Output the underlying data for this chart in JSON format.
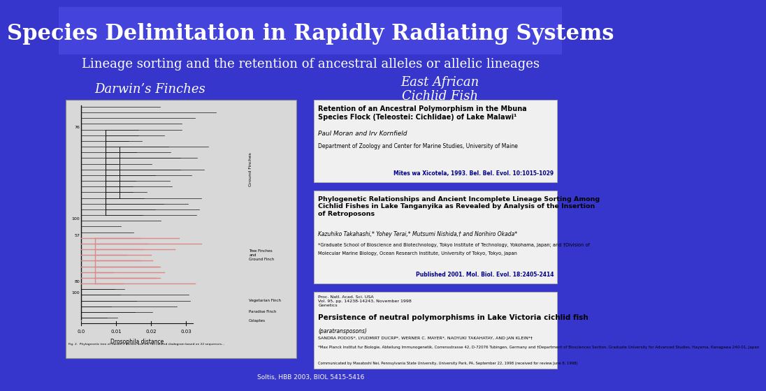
{
  "background_color": "#3636cc",
  "title": "Species Delimitation in Rapidly Radiating Systems",
  "subtitle": "Lineage sorting and the retention of ancestral alleles or allelic lineages",
  "title_color": "#ffffff",
  "subtitle_color": "#ffffff",
  "left_label": "Darwin’s Finches",
  "right_label": "East African\nCichlid Fish",
  "label_color": "#ffffff",
  "paper1_title": "Retention of an Ancestral Polymorphism in the Mbuna\nSpecies Flock (Teleostei: Cichlidae) of Lake Malawi¹",
  "paper1_authors": "Paul Moran and Irv Kornfield",
  "paper1_affil": "Department of Zoology and Center for Marine Studies, University of Maine",
  "paper1_journal": "Mites wa Xicotela, 1993. Bel. Bel. Evol. 10:1015-1029",
  "paper2_title": "Phylogenetic Relationships and Ancient Incomplete Lineage Sorting Among\nCichlid Fishes in Lake Tanganyika as Revealed by Analysis of the Insertion\nof Retroposons",
  "paper2_authors": "Kazuhiko Takahashi,* Yohey Terai,* Mutsumi Nishida,† and Norihiro Okada*",
  "paper2_affil1": "*Graduate School of Bioscience and Biotechnology, Tokyo Institute of Technology, Yokohama, Japan; and †Division of",
  "paper2_affil2": "Molecular Marine Biology, Ocean Research Institute, University of Tokyo, Tokyo, Japan",
  "paper2_journal": "Published 2001. Mol. Biol. Evol. 18:2405-2414",
  "paper3_header": "Proc. Natl. Acad. Sci. USA\nVol. 95, pp. 14238-14243, November 1998\nGenetics",
  "paper3_title": "Persistence of neutral polymorphisms in Lake Victoria cichlid fish",
  "paper3_subtitle": "(paratransposons)",
  "paper3_authors": "SANDRA PODOS*, LYUDMIRT DUCRP*, WERNER C. MAYER*, NAOYUKI TAKAHATAY, AND JAN KLEIN*†",
  "paper3_affil": "*Max Planck Institut fur Biologie, Abteilung Immunogenetik, Corrensstrasse 42, D-72076 Tubingen, Germany and †Department of Biosciences Section, Graduate University for Advanced Studies, Hayama, Kanagawa 240-01, Japan",
  "paper3_communicated": "Communicated by Masatoshi Nei, Pennsylvania State University, University Park, PA, September 22, 1998 (received for review June 8, 1998)",
  "box_bg": "#f0f0f0",
  "box_text_color": "#000000",
  "slide_source": "Soltis, HBB 2003, BIOL 5415-5416"
}
